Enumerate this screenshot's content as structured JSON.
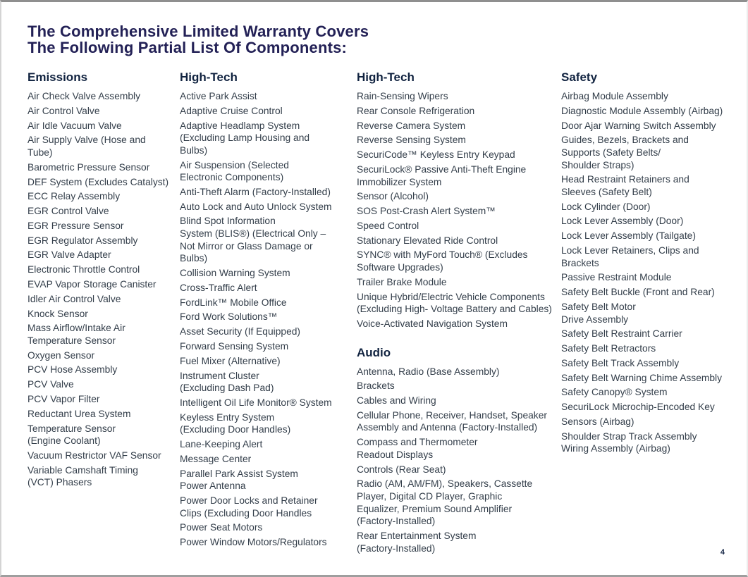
{
  "page": {
    "title_lines": [
      "The Comprehensive Limited Warranty Covers",
      "The Following Partial List Of Components:"
    ],
    "page_number": "4",
    "colors": {
      "title": "#232156",
      "heading": "#112340",
      "body": "#333e4a"
    }
  },
  "columns": [
    {
      "sections": [
        {
          "heading": "Emissions",
          "items": [
            [
              "Air Check Valve Assembly"
            ],
            [
              "Air Control Valve"
            ],
            [
              "Air Idle Vacuum Valve"
            ],
            [
              "Air Supply Valve (Hose and Tube)"
            ],
            [
              "Barometric Pressure Sensor"
            ],
            [
              "DEF System (Excludes Catalyst)"
            ],
            [
              "ECC Relay Assembly"
            ],
            [
              "EGR Control Valve"
            ],
            [
              "EGR Pressure Sensor"
            ],
            [
              "EGR Regulator Assembly"
            ],
            [
              "EGR Valve Adapter"
            ],
            [
              "Electronic Throttle Control"
            ],
            [
              "EVAP Vapor Storage Canister"
            ],
            [
              "Idler Air Control Valve"
            ],
            [
              "Knock Sensor"
            ],
            [
              "Mass Airflow/Intake Air",
              "Temperature Sensor"
            ],
            [
              "Oxygen Sensor"
            ],
            [
              "PCV Hose Assembly"
            ],
            [
              "PCV Valve"
            ],
            [
              "PCV Vapor Filter"
            ],
            [
              "Reductant Urea System"
            ],
            [
              "Temperature Sensor",
              "(Engine Coolant)"
            ],
            [
              "Vacuum Restrictor VAF Sensor"
            ],
            [
              "Variable Camshaft Timing",
              "(VCT) Phasers"
            ]
          ]
        }
      ]
    },
    {
      "sections": [
        {
          "heading": "High-Tech",
          "items": [
            [
              "Active Park Assist"
            ],
            [
              "Adaptive Cruise Control"
            ],
            [
              "Adaptive Headlamp System",
              "(Excluding Lamp Housing and Bulbs)"
            ],
            [
              "Air Suspension (Selected",
              "Electronic Components)"
            ],
            [
              "Anti-Theft Alarm (Factory-Installed)"
            ],
            [
              "Auto Lock and Auto Unlock System"
            ],
            [
              "Blind Spot Information",
              "System (BLIS®) (Electrical Only –",
              "Not Mirror or Glass Damage or Bulbs)"
            ],
            [
              "Collision Warning System"
            ],
            [
              "Cross-Traffic Alert"
            ],
            [
              "FordLink™ Mobile Office"
            ],
            [
              "Ford Work Solutions™"
            ],
            [
              "Asset Security (If Equipped)"
            ],
            [
              "Forward Sensing System"
            ],
            [
              "Fuel Mixer (Alternative)"
            ],
            [
              "Instrument Cluster",
              "(Excluding Dash Pad)"
            ],
            [
              "Intelligent Oil Life Monitor® System"
            ],
            [
              "Keyless Entry System",
              "(Excluding Door Handles)"
            ],
            [
              "Lane-Keeping Alert"
            ],
            [
              "Message Center"
            ],
            [
              "Parallel Park Assist System",
              "Power Antenna"
            ],
            [
              "Power Door Locks and Retainer",
              "Clips (Excluding Door Handles"
            ],
            [
              "Power Seat Motors"
            ],
            [
              "Power Window Motors/Regulators"
            ]
          ]
        }
      ]
    },
    {
      "sections": [
        {
          "heading": "High-Tech",
          "items": [
            [
              "Rain-Sensing Wipers"
            ],
            [
              "Rear Console Refrigeration"
            ],
            [
              "Reverse Camera System"
            ],
            [
              "Reverse Sensing System"
            ],
            [
              "SecuriCode™ Keyless Entry Keypad"
            ],
            [
              "SecuriLock® Passive Anti-Theft Engine",
              "Immobilizer System"
            ],
            [
              "Sensor (Alcohol)"
            ],
            [
              "SOS Post-Crash Alert System™"
            ],
            [
              "Speed Control"
            ],
            [
              "Stationary Elevated Ride Control"
            ],
            [
              "SYNC® with MyFord Touch® (Excludes",
              "Software Upgrades)"
            ],
            [
              "Trailer Brake Module"
            ],
            [
              "Unique Hybrid/Electric Vehicle Components",
              "(Excluding High- Voltage Battery and Cables)"
            ],
            [
              "Voice-Activated Navigation System"
            ]
          ]
        },
        {
          "heading": "Audio",
          "items": [
            [
              "Antenna, Radio (Base Assembly)"
            ],
            [
              "Brackets"
            ],
            [
              "Cables and Wiring"
            ],
            [
              "Cellular Phone, Receiver, Handset, Speaker",
              "Assembly and Antenna (Factory-Installed)"
            ],
            [
              "Compass and Thermometer",
              "Readout Displays"
            ],
            [
              "Controls (Rear Seat)"
            ],
            [
              "Radio (AM, AM/FM), Speakers, Cassette",
              "Player, Digital CD Player, Graphic",
              "Equalizer, Premium Sound Amplifier",
              "(Factory-Installed)"
            ],
            [
              "Rear Entertainment System",
              "(Factory-Installed)"
            ]
          ]
        }
      ]
    },
    {
      "sections": [
        {
          "heading": "Safety",
          "items": [
            [
              "Airbag Module Assembly"
            ],
            [
              "Diagnostic Module Assembly (Airbag)"
            ],
            [
              "Door Ajar Warning Switch Assembly"
            ],
            [
              "Guides, Bezels, Brackets and",
              "Supports (Safety Belts/",
              "Shoulder Straps)"
            ],
            [
              "Head Restraint Retainers and",
              "Sleeves (Safety Belt)"
            ],
            [
              "Lock Cylinder (Door)"
            ],
            [
              "Lock Lever Assembly (Door)"
            ],
            [
              "Lock Lever Assembly (Tailgate)"
            ],
            [
              "Lock Lever Retainers, Clips and",
              "Brackets"
            ],
            [
              "Passive Restraint Module"
            ],
            [
              "Safety Belt Buckle (Front and Rear)"
            ],
            [
              "Safety Belt Motor",
              "Drive Assembly"
            ],
            [
              "Safety Belt Restraint Carrier"
            ],
            [
              "Safety Belt Retractors"
            ],
            [
              "Safety Belt Track Assembly"
            ],
            [
              "Safety Belt Warning Chime Assembly"
            ],
            [
              "Safety Canopy® System"
            ],
            [
              "SecuriLock Microchip-Encoded Key"
            ],
            [
              "Sensors (Airbag)"
            ],
            [
              "Shoulder Strap Track Assembly",
              "Wiring Assembly (Airbag)"
            ]
          ]
        }
      ]
    }
  ]
}
